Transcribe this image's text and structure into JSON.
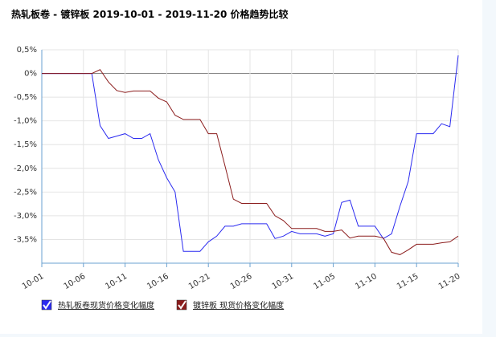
{
  "chart_data": {
    "type": "line",
    "title": "热轧板卷 - 镀锌板 2019-10-01 - 2019-11-20 价格趋势比较",
    "categories": [
      "10-01",
      null,
      null,
      null,
      null,
      "10-06",
      null,
      null,
      null,
      null,
      "10-11",
      null,
      null,
      null,
      null,
      "10-16",
      null,
      null,
      null,
      null,
      "10-21",
      null,
      null,
      null,
      null,
      "10-26",
      null,
      null,
      null,
      null,
      "10-31",
      null,
      null,
      null,
      null,
      "11-05",
      null,
      null,
      null,
      null,
      "11-10",
      null,
      null,
      null,
      null,
      "11-15",
      null,
      null,
      null,
      null,
      "11-20"
    ],
    "ylim": [
      -4.0,
      0.5
    ],
    "yticks": [
      {
        "value": 0.5,
        "label": "0,5%"
      },
      {
        "value": 0,
        "label": "0%"
      },
      {
        "value": -0.5,
        "label": "-0,5%"
      },
      {
        "value": -1.0,
        "label": "-1,0%"
      },
      {
        "value": -1.5,
        "label": "-1,5%"
      },
      {
        "value": -2.0,
        "label": "-2,0%"
      },
      {
        "value": -2.5,
        "label": "-2,5%"
      },
      {
        "value": -3.0,
        "label": "-3,0%"
      },
      {
        "value": -3.5,
        "label": "-3,5%"
      }
    ],
    "grid": true,
    "series": [
      {
        "name": "热轧板卷现货价格变化幅度",
        "color": "#2b2bf0",
        "values": [
          0,
          0,
          0,
          0,
          0,
          0,
          0,
          -1.1,
          -1.37,
          -1.32,
          -1.27,
          -1.37,
          -1.37,
          -1.27,
          -1.82,
          -2.2,
          -2.5,
          -3.75,
          -3.75,
          -3.75,
          -3.55,
          -3.43,
          -3.22,
          -3.22,
          -3.17,
          -3.17,
          -3.17,
          -3.17,
          -3.48,
          -3.43,
          -3.33,
          -3.38,
          -3.38,
          -3.38,
          -3.43,
          -3.38,
          -2.72,
          -2.67,
          -3.22,
          -3.22,
          -3.22,
          -3.48,
          -3.38,
          -2.8,
          -2.28,
          -1.27,
          -1.27,
          -1.27,
          -1.06,
          -1.12,
          0.38
        ]
      },
      {
        "name": "镀锌板 现货价格变化幅度",
        "color": "#8b1c1c",
        "values": [
          0,
          0,
          0,
          0,
          0,
          0,
          0,
          0.08,
          -0.18,
          -0.36,
          -0.4,
          -0.37,
          -0.37,
          -0.37,
          -0.52,
          -0.6,
          -0.88,
          -0.97,
          -0.97,
          -0.97,
          -1.27,
          -1.27,
          -1.95,
          -2.65,
          -2.74,
          -2.74,
          -2.74,
          -2.74,
          -3.0,
          -3.1,
          -3.27,
          -3.27,
          -3.27,
          -3.27,
          -3.33,
          -3.33,
          -3.3,
          -3.47,
          -3.43,
          -3.43,
          -3.43,
          -3.47,
          -3.77,
          -3.82,
          -3.72,
          -3.6,
          -3.6,
          -3.6,
          -3.57,
          -3.55,
          -3.43
        ]
      }
    ]
  }
}
